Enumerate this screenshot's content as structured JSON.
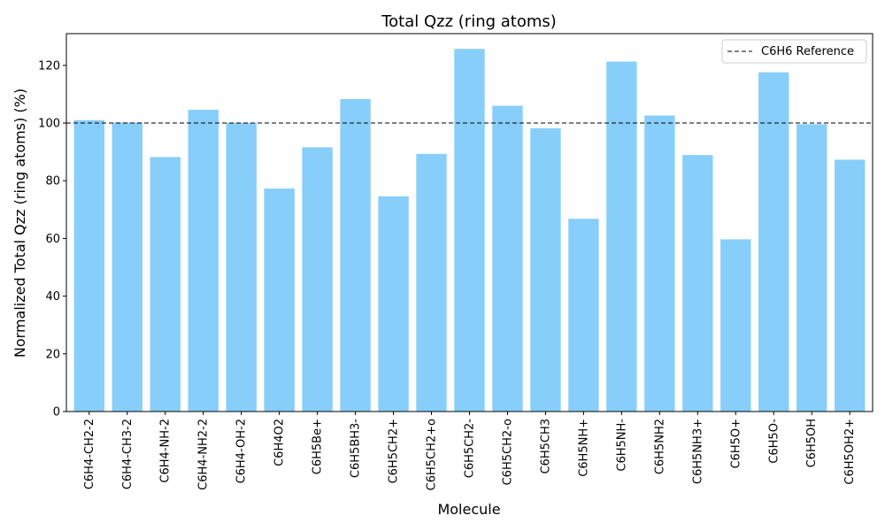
{
  "chart_data": {
    "type": "bar",
    "title": "Total Qzz (ring atoms)",
    "xlabel": "Molecule",
    "ylabel": "Normalized Total Qzz (ring atoms) (%)",
    "ylim": [
      0,
      131
    ],
    "yticks": [
      0,
      20,
      40,
      60,
      80,
      100,
      120
    ],
    "categories": [
      "C6H4-CH2-2",
      "C6H4-CH3-2",
      "C6H4-NH-2",
      "C6H4-NH2-2",
      "C6H4-OH-2",
      "C6H4O2",
      "C6H5Be+",
      "C6H5BH3-",
      "C6H5CH2+",
      "C6H5CH2+o",
      "C6H5CH2-",
      "C6H5CH2-o",
      "C6H5CH3",
      "C6H5NH+",
      "C6H5NH-",
      "C6H5NH2",
      "C6H5NH3+",
      "C6H5O+",
      "C6H5O-",
      "C6H5OH",
      "C6H5OH2+"
    ],
    "values": [
      101,
      100.2,
      88.2,
      104.6,
      100.1,
      77.3,
      91.6,
      108.3,
      74.6,
      89.3,
      125.7,
      106,
      98.2,
      66.8,
      121.3,
      102.6,
      88.9,
      59.7,
      117.6,
      99.6,
      87.3
    ],
    "bar_color": "#87CEFA",
    "reference": {
      "label": "C6H6 Reference",
      "value": 100,
      "style": "dashed",
      "color": "#000000"
    },
    "legend_position": "top-right",
    "grid": false
  }
}
